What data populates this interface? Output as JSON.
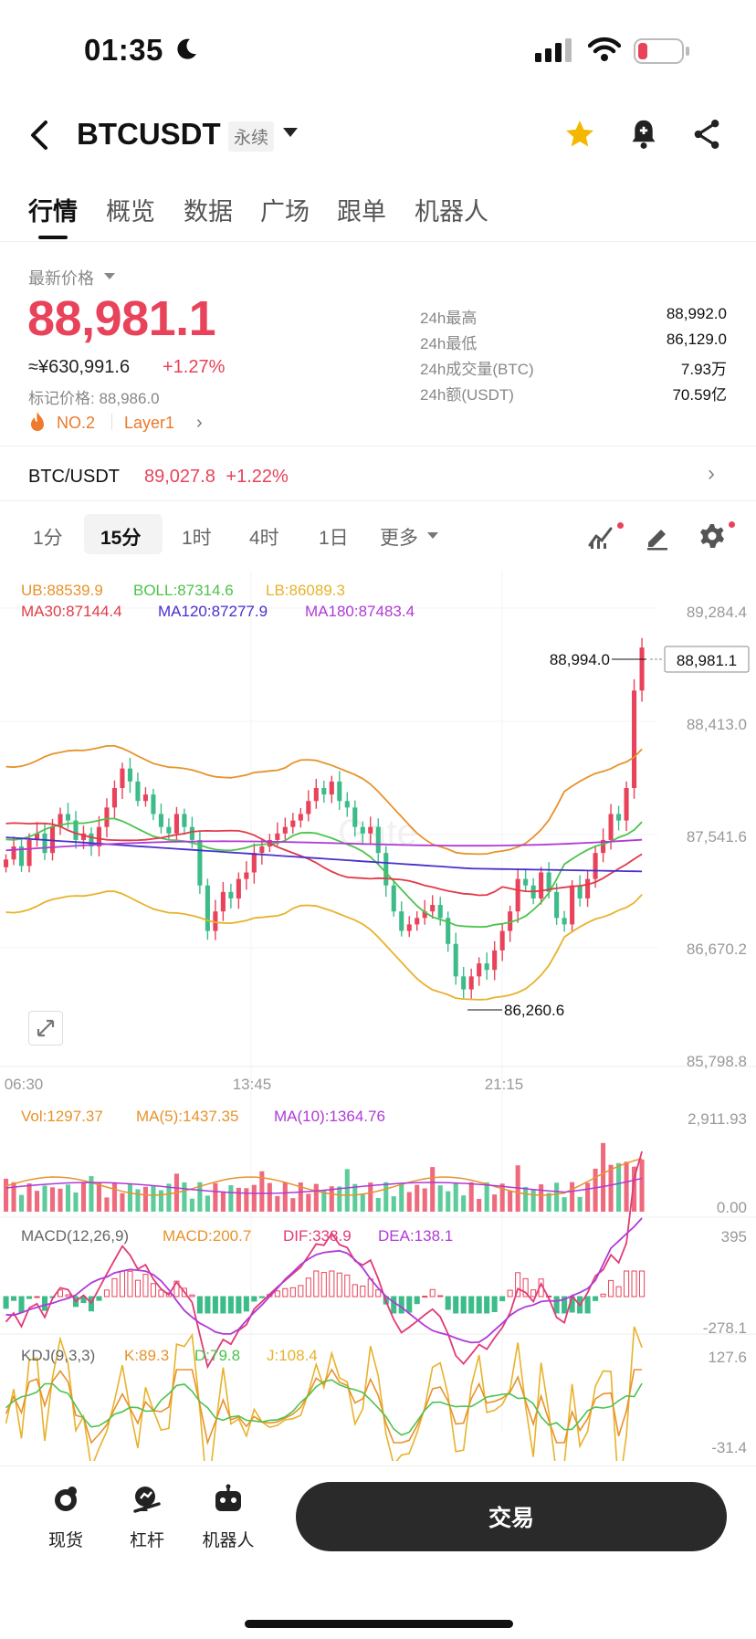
{
  "status": {
    "time": "01:35"
  },
  "header": {
    "symbol": "BTCUSDT",
    "contract_type": "永续"
  },
  "tabs": [
    "行情",
    "概览",
    "数据",
    "广场",
    "跟单",
    "机器人"
  ],
  "price": {
    "label": "最新价格",
    "last": "88,981.1",
    "cny": "≈¥630,991.6",
    "change_pct": "+1.27%",
    "mark": "标记价格: 88,986.0",
    "rank": "NO.2",
    "category": "Layer1"
  },
  "stats": [
    {
      "label": "24h最高",
      "value": "88,992.0"
    },
    {
      "label": "24h最低",
      "value": "86,129.0"
    },
    {
      "label": "24h成交量(BTC)",
      "value": "7.93万"
    },
    {
      "label": "24h额(USDT)",
      "value": "70.59亿"
    }
  ],
  "pair": {
    "name": "BTC/USDT",
    "price": "89,027.8",
    "change": "+1.22%"
  },
  "intervals": [
    "1分",
    "15分",
    "1时",
    "4时",
    "1日",
    "更多"
  ],
  "active_interval": "15分",
  "indicators": {
    "boll": {
      "ub": "UB:88539.9",
      "boll": "BOLL:87314.6",
      "lb": "LB:86089.3"
    },
    "ma": {
      "ma30": "MA30:87144.4",
      "ma120": "MA120:87277.9",
      "ma180": "MA180:87483.4"
    },
    "vol": {
      "vol": "Vol:1297.37",
      "ma5": "MA(5):1437.35",
      "ma10": "MA(10):1364.76"
    },
    "macd": {
      "name": "MACD(12,26,9)",
      "macd": "MACD:200.7",
      "dif": "DIF:338.9",
      "dea": "DEA:138.1"
    },
    "kdj": {
      "name": "KDJ(9,3,3)",
      "k": "K:89.3",
      "d": "D:79.8",
      "j": "J:108.4"
    }
  },
  "chart_data": {
    "type": "candlestick",
    "price_axis": [
      "89,284.4",
      "88,413.0",
      "87,541.6",
      "86,670.2",
      "85,798.8"
    ],
    "time_axis": [
      "06:30",
      "13:45",
      "21:15"
    ],
    "current_price_tag": "88,981.1",
    "high_marker": "88,994.0",
    "low_marker": "86,260.6",
    "vol_axis": [
      "2,911.93",
      "0.00"
    ],
    "macd_axis": [
      "395",
      "-278.1"
    ],
    "kdj_axis": [
      "127.6",
      "-31.4"
    ],
    "ylim": [
      85798.8,
      89284.4
    ],
    "closes": [
      87350,
      87450,
      87300,
      87500,
      87550,
      87400,
      87600,
      87700,
      87650,
      87500,
      87550,
      87450,
      87600,
      87750,
      87900,
      88050,
      87950,
      87800,
      87850,
      87700,
      87600,
      87550,
      87700,
      87600,
      87500,
      87150,
      86800,
      86950,
      87100,
      87050,
      87200,
      87250,
      87400,
      87450,
      87500,
      87550,
      87600,
      87650,
      87700,
      87800,
      87900,
      87850,
      87950,
      87800,
      87750,
      87600,
      87550,
      87600,
      87400,
      87150,
      86950,
      86800,
      86850,
      86900,
      86950,
      87000,
      86900,
      86700,
      86450,
      86350,
      86450,
      86550,
      86500,
      86650,
      86800,
      86950,
      87200,
      87150,
      87050,
      87250,
      87100,
      86900,
      86850,
      87150,
      87050,
      87200,
      87400,
      87500,
      87700,
      87650,
      87900,
      88650,
      88981
    ]
  }
}
